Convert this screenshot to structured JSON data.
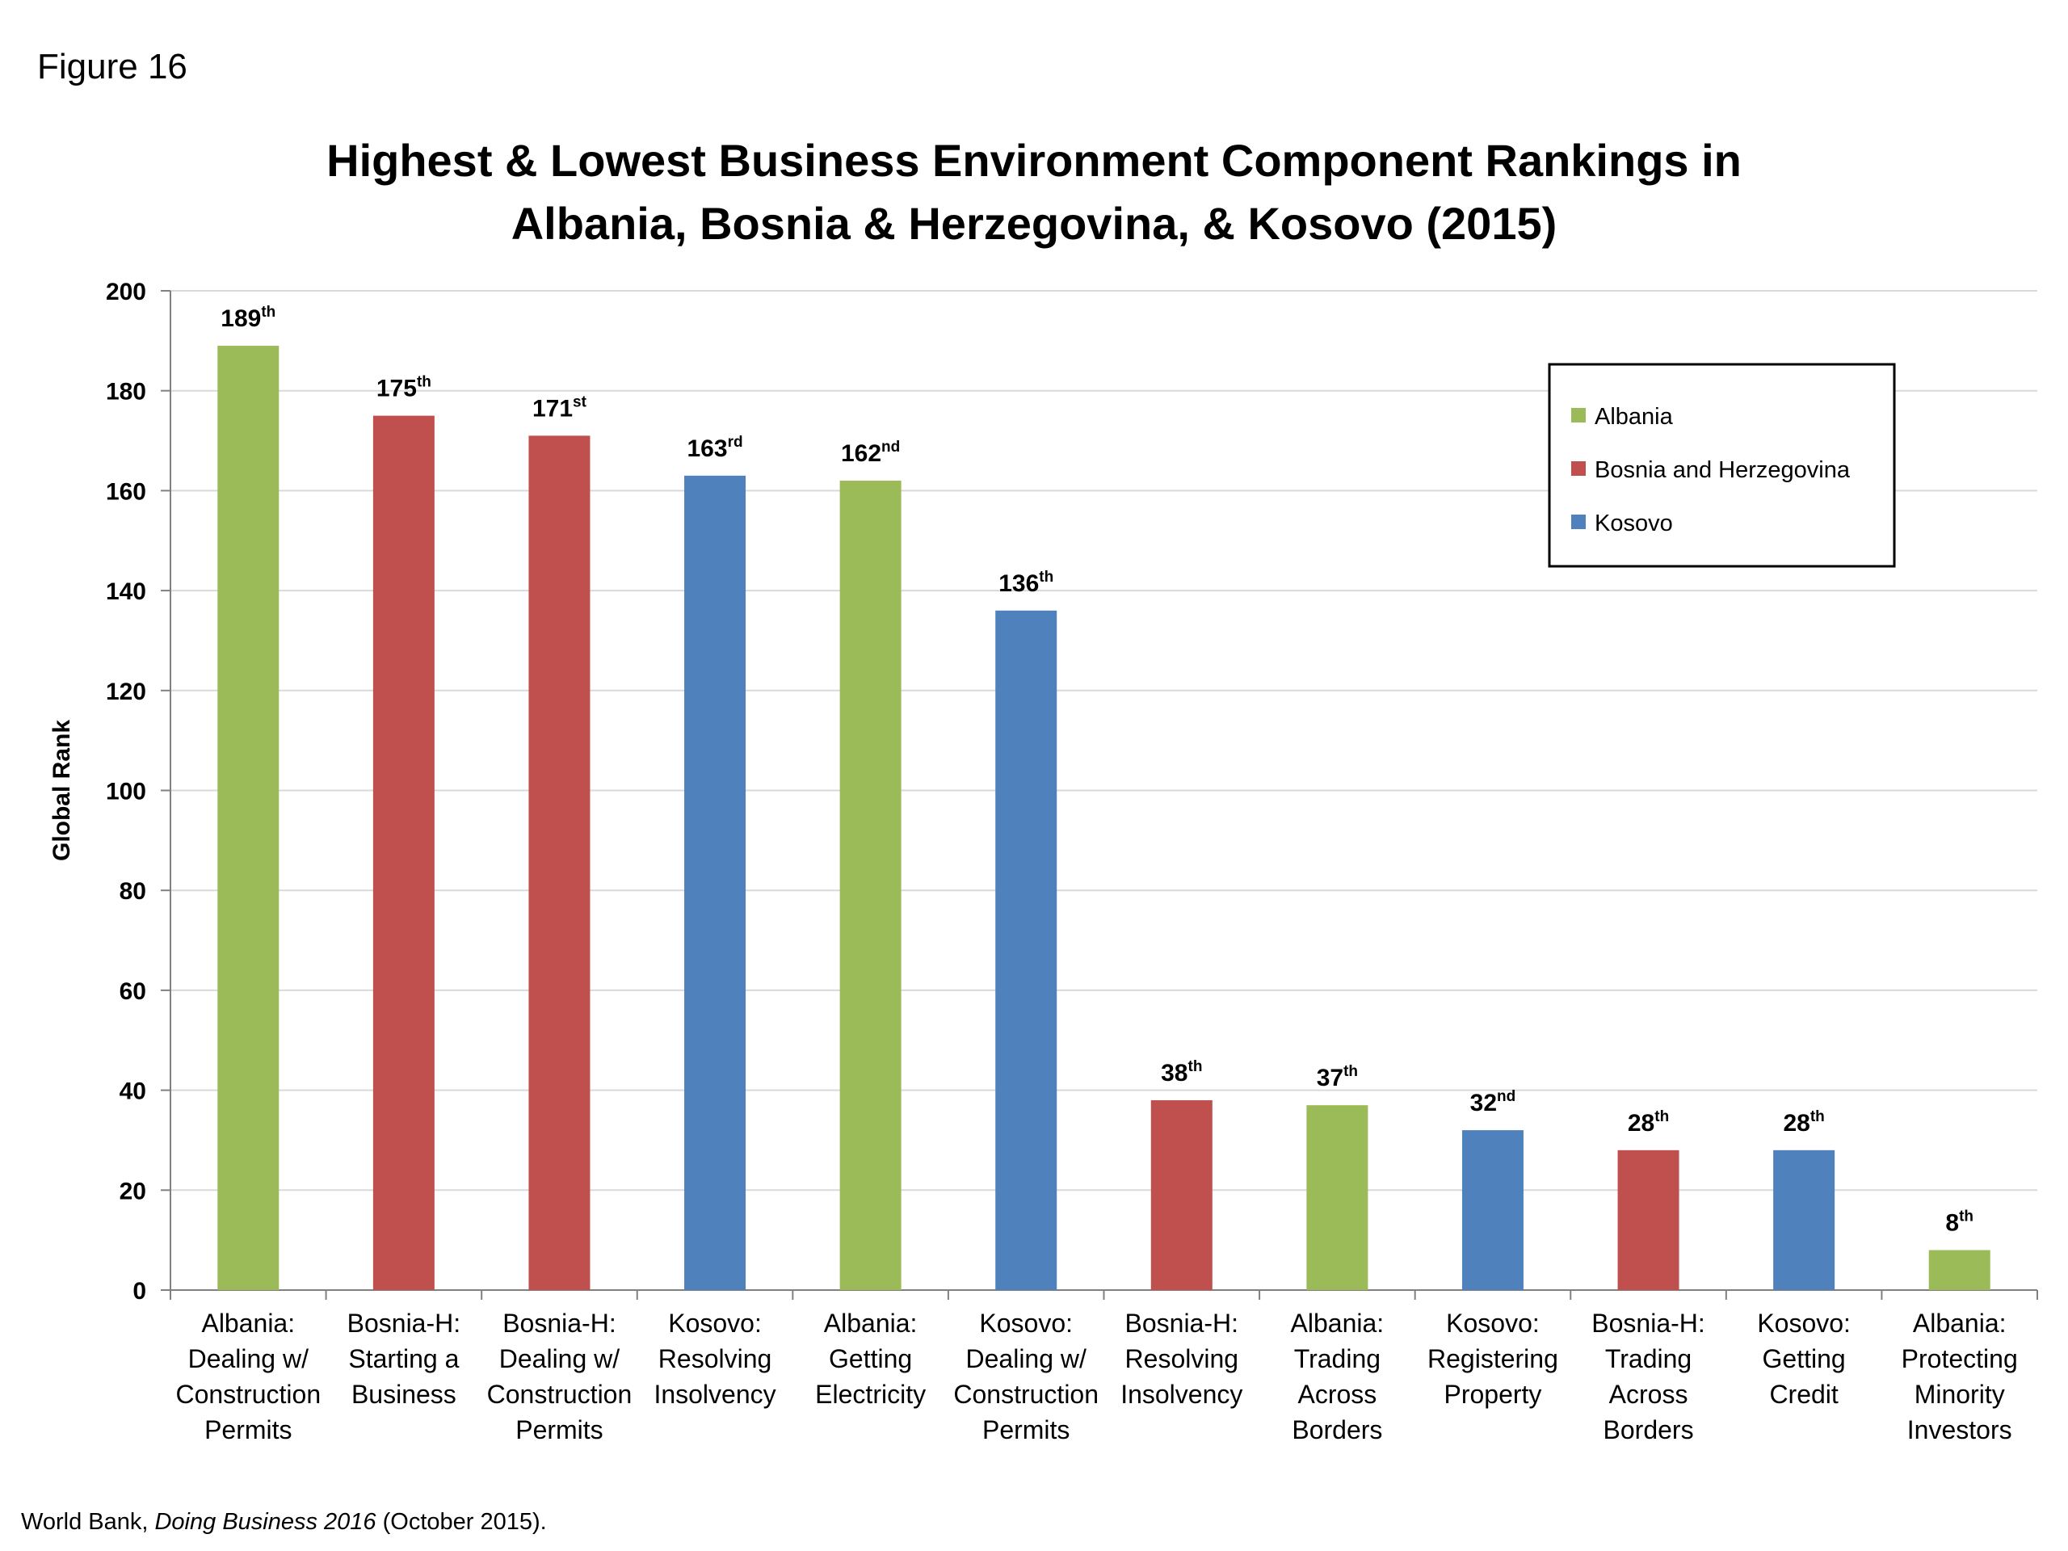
{
  "figure_label": "Figure 16",
  "title_line1": "Highest & Lowest Business Environment Component Rankings in",
  "title_line2": "Albania, Bosnia & Herzegovina, & Kosovo (2015)",
  "source": {
    "prefix": "World Bank, ",
    "italic": "Doing Business 2016",
    "suffix": " (October 2015)."
  },
  "chart_data": {
    "type": "bar",
    "title": "Highest & Lowest Business Environment Component Rankings in Albania, Bosnia & Herzegovina, & Kosovo (2015)",
    "xlabel": "",
    "ylabel": "Global Rank",
    "ylim": [
      0,
      200
    ],
    "yticks": [
      "0",
      "20",
      "40",
      "60",
      "80",
      "100",
      "120",
      "140",
      "160",
      "180",
      "200"
    ],
    "grid": true,
    "legend_position": "top-right",
    "legend": [
      {
        "name": "Albania",
        "color": "#9BBB59"
      },
      {
        "name": "Bosnia and Herzegovina",
        "color": "#C0504D"
      },
      {
        "name": "Kosovo",
        "color": "#4F81BD"
      }
    ],
    "bars": [
      {
        "label": [
          "Albania:",
          "Dealing w/",
          "Construction",
          "Permits"
        ],
        "value": 189,
        "rank": "189",
        "suffix": "th",
        "series": "Albania"
      },
      {
        "label": [
          "Bosnia-H:",
          "Starting a",
          "Business"
        ],
        "value": 175,
        "rank": "175",
        "suffix": "th",
        "series": "Bosnia and Herzegovina"
      },
      {
        "label": [
          "Bosnia-H:",
          "Dealing w/",
          "Construction",
          "Permits"
        ],
        "value": 171,
        "rank": "171",
        "suffix": "st",
        "series": "Bosnia and Herzegovina"
      },
      {
        "label": [
          "Kosovo:",
          "Resolving",
          "Insolvency"
        ],
        "value": 163,
        "rank": "163",
        "suffix": "rd",
        "series": "Kosovo"
      },
      {
        "label": [
          "Albania:",
          "Getting",
          "Electricity"
        ],
        "value": 162,
        "rank": "162",
        "suffix": "nd",
        "series": "Albania"
      },
      {
        "label": [
          "Kosovo:",
          "Dealing w/",
          "Construction",
          "Permits"
        ],
        "value": 136,
        "rank": "136",
        "suffix": "th",
        "series": "Kosovo"
      },
      {
        "label": [
          "Bosnia-H:",
          "Resolving",
          "Insolvency"
        ],
        "value": 38,
        "rank": "38",
        "suffix": "th",
        "series": "Bosnia and Herzegovina"
      },
      {
        "label": [
          "Albania:",
          "Trading",
          "Across",
          "Borders"
        ],
        "value": 37,
        "rank": "37",
        "suffix": "th",
        "series": "Albania"
      },
      {
        "label": [
          "Kosovo:",
          "Registering",
          "Property"
        ],
        "value": 32,
        "rank": "32",
        "suffix": "nd",
        "series": "Kosovo"
      },
      {
        "label": [
          "Bosnia-H:",
          "Trading",
          "Across",
          "Borders"
        ],
        "value": 28,
        "rank": "28",
        "suffix": "th",
        "series": "Bosnia and Herzegovina"
      },
      {
        "label": [
          "Kosovo:",
          "Getting",
          "Credit"
        ],
        "value": 28,
        "rank": "28",
        "suffix": "th",
        "series": "Kosovo"
      },
      {
        "label": [
          "Albania:",
          "Protecting",
          "Minority",
          "Investors"
        ],
        "value": 8,
        "rank": "8",
        "suffix": "th",
        "series": "Albania"
      }
    ]
  }
}
